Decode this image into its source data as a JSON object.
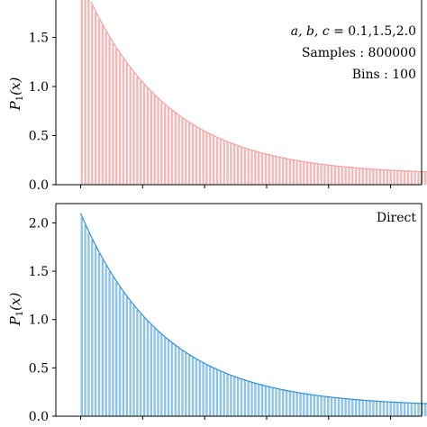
{
  "chart_data": [
    {
      "type": "bar",
      "panel": "top",
      "ylabel": "P_1(x)",
      "ylabel_parts": {
        "base": "P",
        "sub": "1",
        "arg": "(x)"
      },
      "ylim": [
        0,
        1.9
      ],
      "yticks": [
        0.0,
        0.5,
        1.0,
        1.5
      ],
      "ytick_labels": [
        "0.0",
        "0.5",
        "1.0",
        "1.5"
      ],
      "xlim": [
        -0.4,
        5.5
      ],
      "xticks": [
        0,
        1,
        2,
        3,
        4,
        5
      ],
      "bins": 100,
      "x_range": [
        0,
        5.6
      ],
      "bar_color": "#f4b8b8",
      "curve_color": "#f4a0a0",
      "curve": {
        "a": 0.1,
        "b": 1.5,
        "c": 2.0,
        "formula": "a + c*exp(-b*x/2)"
      },
      "annotation_lines": [
        "a, b, c = 0.1,1.5,2.0",
        "Samples : 800000",
        "Bins : 100"
      ],
      "annotation_parts": {
        "vars": "a, b, c",
        "values": " = 0.1,1.5,2.0"
      }
    },
    {
      "type": "bar",
      "panel": "bottom",
      "ylabel": "P_1(x)",
      "ylabel_parts": {
        "base": "P",
        "sub": "1",
        "arg": "(x)"
      },
      "ylim": [
        0,
        2.2
      ],
      "yticks": [
        0.0,
        0.5,
        1.0,
        1.5,
        2.0
      ],
      "ytick_labels": [
        "0.0",
        "0.5",
        "1.0",
        "1.5",
        "2.0"
      ],
      "xlim": [
        -0.4,
        5.5
      ],
      "xticks": [
        0,
        1,
        2,
        3,
        4,
        5
      ],
      "bins": 100,
      "x_range": [
        0,
        5.6
      ],
      "bar_color": "#8ec3ea",
      "curve_color": "#2e8fd8",
      "curve": {
        "a": 0.1,
        "b": 1.5,
        "c": 2.0,
        "formula": "a + c*exp(-b*x/2)"
      },
      "annotation_lines": [
        "Direct"
      ]
    }
  ]
}
